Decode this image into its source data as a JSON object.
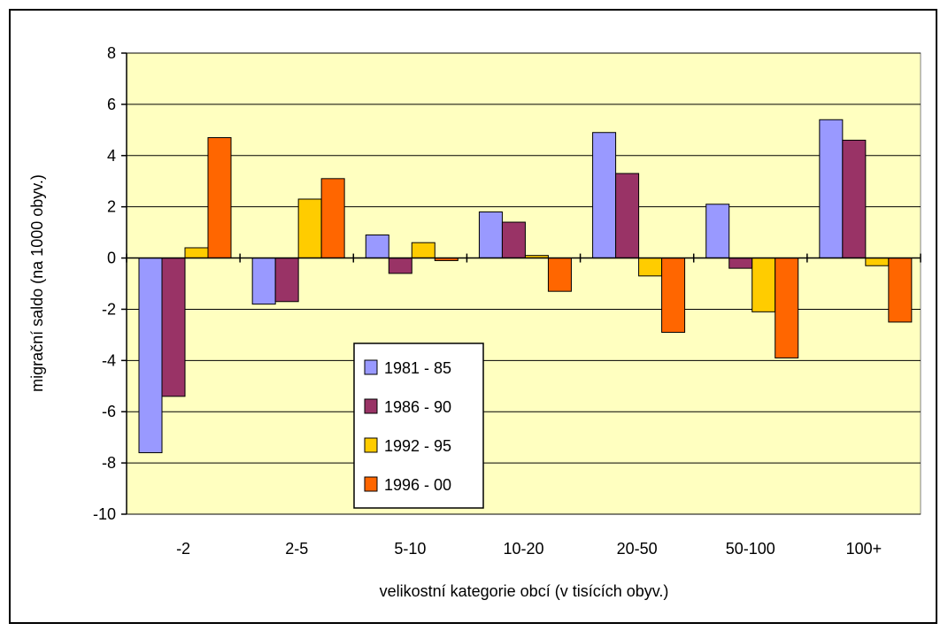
{
  "chart_data": {
    "type": "bar",
    "xlabel": "velikostní kategorie obcí (v tisících obyv.)",
    "ylabel": "migrační saldo (na 1000 obyv.)",
    "categories": [
      "-2",
      "2-5",
      "5-10",
      "10-20",
      "20-50",
      "50-100",
      "100+"
    ],
    "ylim": [
      -10,
      8
    ],
    "yticks": [
      -10,
      -8,
      -6,
      -4,
      -2,
      0,
      2,
      4,
      6,
      8
    ],
    "grid": true,
    "legend_position": "inside, lower-middle",
    "plot_background": "#FFFFC0",
    "series": [
      {
        "name": "1981 - 85",
        "color": "#9999FF",
        "values": [
          -7.6,
          -1.8,
          0.9,
          1.8,
          4.9,
          2.1,
          5.4
        ]
      },
      {
        "name": "1986 - 90",
        "color": "#993366",
        "values": [
          -5.4,
          -1.7,
          -0.6,
          1.4,
          3.3,
          -0.4,
          4.6
        ]
      },
      {
        "name": "1992 - 95",
        "color": "#FFCC00",
        "values": [
          0.4,
          2.3,
          0.6,
          0.1,
          -0.7,
          -2.1,
          -0.3
        ]
      },
      {
        "name": "1996 - 00",
        "color": "#FF6600",
        "values": [
          4.7,
          3.1,
          -0.1,
          -1.3,
          -2.9,
          -3.9,
          -2.5
        ]
      }
    ]
  }
}
